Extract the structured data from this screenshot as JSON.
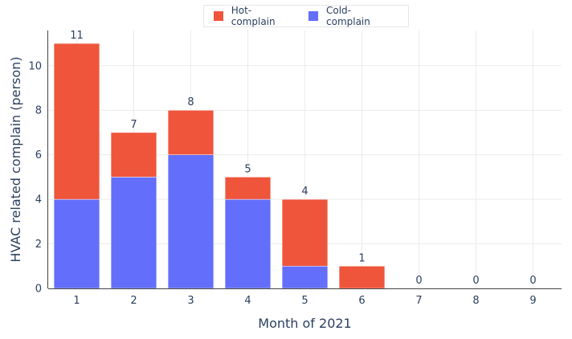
{
  "chart_data": {
    "type": "bar",
    "stacked": true,
    "categories": [
      "1",
      "2",
      "3",
      "4",
      "5",
      "6",
      "7",
      "8",
      "9"
    ],
    "series": [
      {
        "name": "Cold-complain",
        "color": "#636efa",
        "values": [
          4,
          5,
          6,
          4,
          1,
          0,
          0,
          0,
          0
        ]
      },
      {
        "name": "Hot-complain",
        "color": "#ef553b",
        "values": [
          7,
          2,
          2,
          1,
          3,
          1,
          0,
          0,
          0
        ]
      }
    ],
    "totals": [
      "11",
      "7",
      "8",
      "5",
      "4",
      "1",
      "0",
      "0",
      "0"
    ],
    "legend_order": [
      "Hot-complain",
      "Cold-complain"
    ],
    "xlabel": "Month of 2021",
    "ylabel": "HVAC related complain (person)",
    "ylim": [
      0,
      11.58
    ],
    "yticks": [
      "0",
      "2",
      "4",
      "6",
      "8",
      "10"
    ],
    "grid": true,
    "legend_position": "top-center"
  }
}
